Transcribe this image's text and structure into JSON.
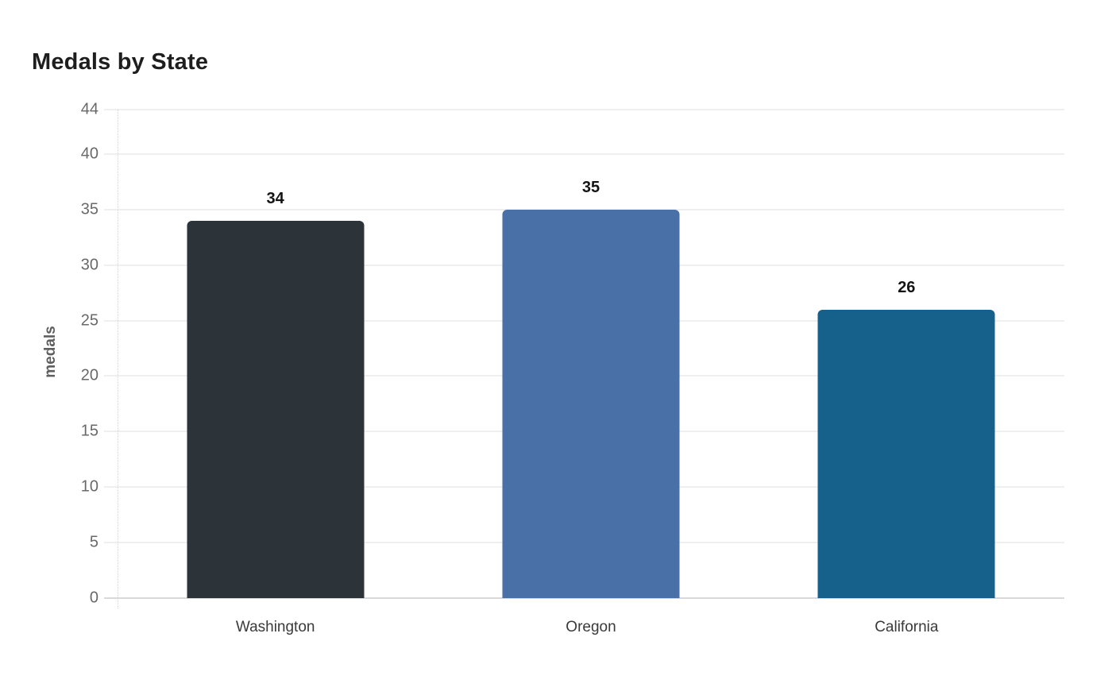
{
  "page": {
    "background_color": "#ffffff"
  },
  "chart_data": {
    "type": "bar",
    "title": "Medals by State",
    "xlabel": "",
    "ylabel": "medals",
    "categories": [
      "Washington",
      "Oregon",
      "California"
    ],
    "values": [
      34,
      35,
      26
    ],
    "value_labels": [
      "34",
      "35",
      "26"
    ],
    "bar_colors": [
      "#2c343a",
      "#4a70a8",
      "#16608c"
    ],
    "ylim": [
      0,
      44
    ],
    "yticks": [
      0,
      5,
      10,
      15,
      20,
      25,
      30,
      35,
      40,
      44
    ],
    "grid": "horizontal",
    "legend_position": "none",
    "style": {
      "title_color": "#1e1e1e",
      "axis_label_color": "#5e5e5e",
      "tick_label_color": "#696969",
      "category_label_color": "#3a3a3a",
      "value_label_color": "#141414",
      "gridline_color": "#efefef",
      "baseline_color": "#d9d9d9"
    }
  }
}
